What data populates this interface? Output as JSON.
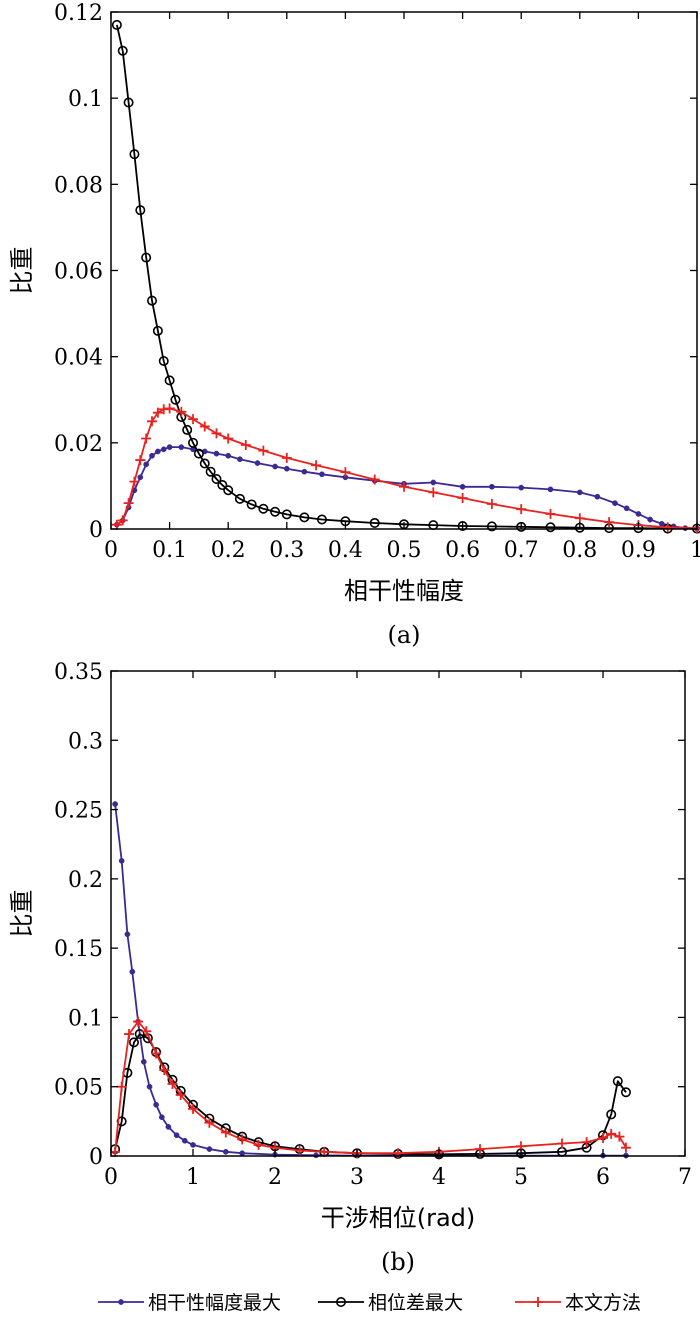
{
  "colors": {
    "coherence": "#3a2a94",
    "phase_diff": "#000000",
    "ours": "#e8231f"
  },
  "legend": [
    {
      "key": "coherence",
      "label": "相干性幅度最大",
      "marker": "dot"
    },
    {
      "key": "phase_diff",
      "label": "相位差最大",
      "marker": "circle"
    },
    {
      "key": "ours",
      "label": "本文方法",
      "marker": "plus"
    }
  ],
  "chart_data": [
    {
      "type": "line",
      "panel_label": "(a)",
      "xlabel": "相干性幅度",
      "ylabel": "比重",
      "xlim": [
        0,
        1
      ],
      "ylim": [
        0,
        0.12
      ],
      "xticks": [
        0,
        0.1,
        0.2,
        0.3,
        0.4,
        0.5,
        0.6,
        0.7,
        0.8,
        0.9,
        1
      ],
      "xtick_labels": [
        "0",
        "0.1",
        "0.2",
        "0.3",
        "0.4",
        "0.5",
        "0.6",
        "0.7",
        "0.8",
        "0.9",
        "1"
      ],
      "yticks": [
        0,
        0.02,
        0.04,
        0.06,
        0.08,
        0.1,
        0.12
      ],
      "ytick_labels": [
        "0",
        "0.02",
        "0.04",
        "0.06",
        "0.08",
        "0.1",
        "0.12"
      ],
      "series": [
        {
          "key": "coherence",
          "name": "相干性幅度最大",
          "points": [
            [
              0.01,
              0.001
            ],
            [
              0.02,
              0.002
            ],
            [
              0.03,
              0.005
            ],
            [
              0.04,
              0.009
            ],
            [
              0.05,
              0.012
            ],
            [
              0.06,
              0.015
            ],
            [
              0.07,
              0.017
            ],
            [
              0.08,
              0.018
            ],
            [
              0.09,
              0.0185
            ],
            [
              0.1,
              0.019
            ],
            [
              0.12,
              0.019
            ],
            [
              0.14,
              0.0185
            ],
            [
              0.16,
              0.018
            ],
            [
              0.18,
              0.0175
            ],
            [
              0.2,
              0.017
            ],
            [
              0.22,
              0.0162
            ],
            [
              0.25,
              0.0153
            ],
            [
              0.28,
              0.0145
            ],
            [
              0.3,
              0.014
            ],
            [
              0.33,
              0.0133
            ],
            [
              0.36,
              0.0127
            ],
            [
              0.4,
              0.012
            ],
            [
              0.45,
              0.0112
            ],
            [
              0.5,
              0.0105
            ],
            [
              0.55,
              0.0108
            ],
            [
              0.6,
              0.0098
            ],
            [
              0.65,
              0.0098
            ],
            [
              0.7,
              0.0096
            ],
            [
              0.75,
              0.0092
            ],
            [
              0.8,
              0.0085
            ],
            [
              0.83,
              0.0075
            ],
            [
              0.86,
              0.006
            ],
            [
              0.88,
              0.0048
            ],
            [
              0.9,
              0.0035
            ],
            [
              0.92,
              0.0022
            ],
            [
              0.94,
              0.0012
            ],
            [
              0.96,
              0.0006
            ],
            [
              0.98,
              0.0002
            ],
            [
              1.0,
              0.0001
            ]
          ]
        },
        {
          "key": "phase_diff",
          "name": "相位差最大",
          "points": [
            [
              0.01,
              0.117
            ],
            [
              0.02,
              0.111
            ],
            [
              0.03,
              0.099
            ],
            [
              0.04,
              0.087
            ],
            [
              0.05,
              0.074
            ],
            [
              0.06,
              0.063
            ],
            [
              0.07,
              0.053
            ],
            [
              0.08,
              0.046
            ],
            [
              0.09,
              0.039
            ],
            [
              0.1,
              0.0345
            ],
            [
              0.11,
              0.03
            ],
            [
              0.12,
              0.026
            ],
            [
              0.13,
              0.023
            ],
            [
              0.14,
              0.02
            ],
            [
              0.15,
              0.0175
            ],
            [
              0.16,
              0.0152
            ],
            [
              0.17,
              0.0133
            ],
            [
              0.18,
              0.0116
            ],
            [
              0.19,
              0.0102
            ],
            [
              0.2,
              0.009
            ],
            [
              0.22,
              0.007
            ],
            [
              0.24,
              0.0057
            ],
            [
              0.26,
              0.0047
            ],
            [
              0.28,
              0.004
            ],
            [
              0.3,
              0.0034
            ],
            [
              0.33,
              0.0027
            ],
            [
              0.36,
              0.0022
            ],
            [
              0.4,
              0.0018
            ],
            [
              0.45,
              0.0014
            ],
            [
              0.5,
              0.0011
            ],
            [
              0.55,
              0.0009
            ],
            [
              0.6,
              0.0007
            ],
            [
              0.65,
              0.0006
            ],
            [
              0.7,
              0.0005
            ],
            [
              0.75,
              0.0004
            ],
            [
              0.8,
              0.0003
            ],
            [
              0.85,
              0.0002
            ],
            [
              0.9,
              0.0002
            ],
            [
              0.95,
              0.0001
            ],
            [
              1.0,
              0.0001
            ]
          ]
        },
        {
          "key": "ours",
          "name": "本文方法",
          "points": [
            [
              0.01,
              0.001
            ],
            [
              0.02,
              0.002
            ],
            [
              0.03,
              0.006
            ],
            [
              0.04,
              0.011
            ],
            [
              0.05,
              0.016
            ],
            [
              0.06,
              0.021
            ],
            [
              0.07,
              0.025
            ],
            [
              0.08,
              0.027
            ],
            [
              0.09,
              0.0278
            ],
            [
              0.1,
              0.028
            ],
            [
              0.12,
              0.0272
            ],
            [
              0.14,
              0.0255
            ],
            [
              0.16,
              0.0238
            ],
            [
              0.18,
              0.0222
            ],
            [
              0.2,
              0.021
            ],
            [
              0.23,
              0.0195
            ],
            [
              0.26,
              0.0182
            ],
            [
              0.3,
              0.0165
            ],
            [
              0.35,
              0.0148
            ],
            [
              0.4,
              0.0132
            ],
            [
              0.45,
              0.0115
            ],
            [
              0.5,
              0.0098
            ],
            [
              0.55,
              0.0085
            ],
            [
              0.6,
              0.0072
            ],
            [
              0.65,
              0.0058
            ],
            [
              0.7,
              0.0046
            ],
            [
              0.75,
              0.0035
            ],
            [
              0.8,
              0.0025
            ],
            [
              0.85,
              0.0016
            ],
            [
              0.9,
              0.0009
            ],
            [
              0.95,
              0.0004
            ],
            [
              1.0,
              0.0002
            ]
          ]
        }
      ]
    },
    {
      "type": "line",
      "panel_label": "(b)",
      "xlabel": "干涉相位(rad)",
      "ylabel": "比重",
      "xlim": [
        0,
        7
      ],
      "ylim": [
        0,
        0.35
      ],
      "xticks": [
        0,
        1,
        2,
        3,
        4,
        5,
        6,
        7
      ],
      "xtick_labels": [
        "0",
        "1",
        "2",
        "3",
        "4",
        "5",
        "6",
        "7"
      ],
      "yticks": [
        0,
        0.05,
        0.1,
        0.15,
        0.2,
        0.25,
        0.3,
        0.35
      ],
      "ytick_labels": [
        "0",
        "0.05",
        "0.1",
        "0.15",
        "0.2",
        "0.25",
        "0.3",
        "0.35"
      ],
      "series": [
        {
          "key": "coherence",
          "name": "相干性幅度最大",
          "points": [
            [
              0.05,
              0.254
            ],
            [
              0.13,
              0.213
            ],
            [
              0.2,
              0.16
            ],
            [
              0.26,
              0.133
            ],
            [
              0.33,
              0.097
            ],
            [
              0.4,
              0.068
            ],
            [
              0.47,
              0.05
            ],
            [
              0.55,
              0.037
            ],
            [
              0.62,
              0.028
            ],
            [
              0.7,
              0.021
            ],
            [
              0.8,
              0.015
            ],
            [
              0.9,
              0.011
            ],
            [
              1.0,
              0.008
            ],
            [
              1.2,
              0.005
            ],
            [
              1.4,
              0.003
            ],
            [
              1.6,
              0.002
            ],
            [
              2.0,
              0.001
            ],
            [
              2.5,
              0.0005
            ],
            [
              3.0,
              0.0003
            ],
            [
              4.0,
              0.0002
            ],
            [
              5.0,
              0.0002
            ],
            [
              6.0,
              0.0003
            ],
            [
              6.28,
              0.0003
            ]
          ]
        },
        {
          "key": "phase_diff",
          "name": "相位差最大",
          "points": [
            [
              0.05,
              0.005
            ],
            [
              0.13,
              0.025
            ],
            [
              0.2,
              0.06
            ],
            [
              0.28,
              0.082
            ],
            [
              0.35,
              0.088
            ],
            [
              0.45,
              0.085
            ],
            [
              0.55,
              0.075
            ],
            [
              0.65,
              0.064
            ],
            [
              0.75,
              0.055
            ],
            [
              0.85,
              0.047
            ],
            [
              1.0,
              0.037
            ],
            [
              1.2,
              0.027
            ],
            [
              1.4,
              0.02
            ],
            [
              1.6,
              0.014
            ],
            [
              1.8,
              0.01
            ],
            [
              2.0,
              0.007
            ],
            [
              2.3,
              0.005
            ],
            [
              2.6,
              0.003
            ],
            [
              3.0,
              0.002
            ],
            [
              3.5,
              0.0015
            ],
            [
              4.0,
              0.0012
            ],
            [
              4.5,
              0.0015
            ],
            [
              5.0,
              0.002
            ],
            [
              5.5,
              0.003
            ],
            [
              5.8,
              0.006
            ],
            [
              6.0,
              0.015
            ],
            [
              6.1,
              0.03
            ],
            [
              6.18,
              0.054
            ],
            [
              6.28,
              0.046
            ]
          ]
        },
        {
          "key": "ours",
          "name": "本文方法",
          "points": [
            [
              0.05,
              0.003
            ],
            [
              0.13,
              0.05
            ],
            [
              0.22,
              0.088
            ],
            [
              0.33,
              0.097
            ],
            [
              0.43,
              0.09
            ],
            [
              0.55,
              0.074
            ],
            [
              0.65,
              0.062
            ],
            [
              0.75,
              0.052
            ],
            [
              0.85,
              0.044
            ],
            [
              1.0,
              0.034
            ],
            [
              1.2,
              0.024
            ],
            [
              1.4,
              0.017
            ],
            [
              1.6,
              0.012
            ],
            [
              1.8,
              0.008
            ],
            [
              2.0,
              0.006
            ],
            [
              2.3,
              0.004
            ],
            [
              2.6,
              0.003
            ],
            [
              3.0,
              0.002
            ],
            [
              3.5,
              0.002
            ],
            [
              4.0,
              0.003
            ],
            [
              4.5,
              0.005
            ],
            [
              5.0,
              0.007
            ],
            [
              5.5,
              0.009
            ],
            [
              5.8,
              0.01
            ],
            [
              6.0,
              0.013
            ],
            [
              6.1,
              0.016
            ],
            [
              6.2,
              0.014
            ],
            [
              6.28,
              0.006
            ]
          ]
        }
      ]
    }
  ]
}
